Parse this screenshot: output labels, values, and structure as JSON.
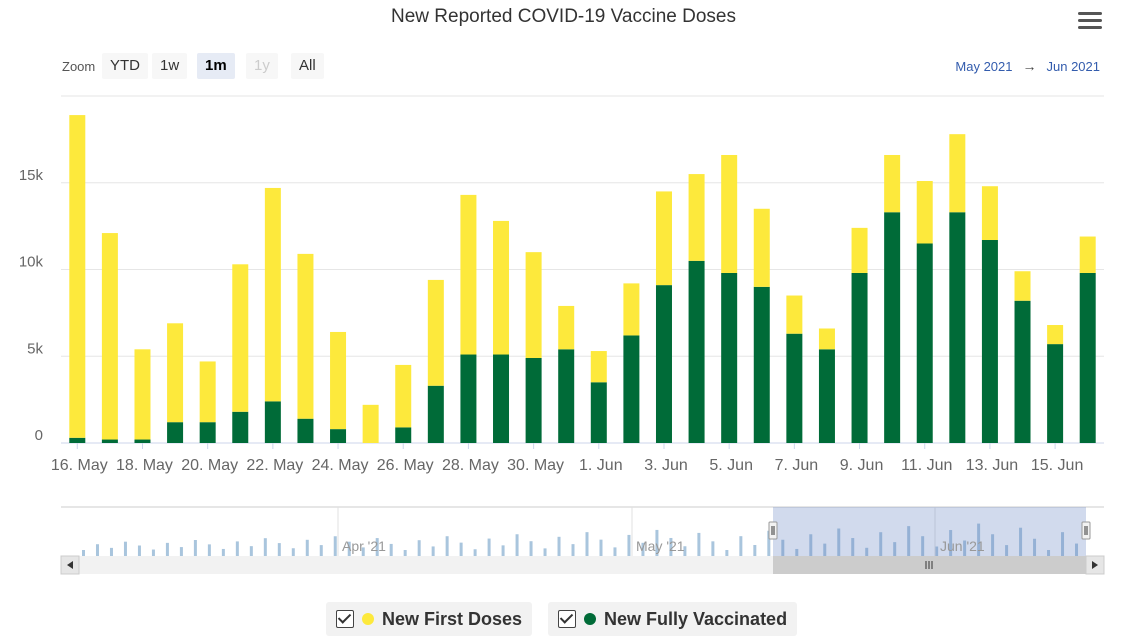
{
  "title": "New Reported COVID-19 Vaccine Doses",
  "icons": {
    "menu": "hamburger-menu-icon",
    "checkbox": "checkbox-checked-icon",
    "scroll_left": "chevron-left-icon",
    "scroll_right": "chevron-right-icon",
    "grip": "grip-icon"
  },
  "zoom": {
    "label": "Zoom",
    "buttons": [
      {
        "label": "YTD",
        "state": "normal"
      },
      {
        "label": "1w",
        "state": "normal"
      },
      {
        "label": "1m",
        "state": "active"
      },
      {
        "label": "1y",
        "state": "disabled"
      },
      {
        "label": "All",
        "state": "normal"
      }
    ]
  },
  "range": {
    "from": "May 2021",
    "arrow": "→",
    "to": "Jun 2021"
  },
  "navigator": {
    "labels": [
      "Apr '21",
      "May '21",
      "Jun '21"
    ]
  },
  "legend": [
    {
      "label": "New First Doses",
      "color": "#fde93c"
    },
    {
      "label": "New Fully Vaccinated",
      "color": "#006b38"
    }
  ],
  "chart_data": {
    "type": "bar",
    "stacked": true,
    "title": "New Reported COVID-19 Vaccine Doses",
    "categories": [
      "16. May",
      "17. May",
      "18. May",
      "19. May",
      "20. May",
      "21. May",
      "22. May",
      "23. May",
      "24. May",
      "25. May",
      "26. May",
      "27. May",
      "28. May",
      "29. May",
      "30. May",
      "31. May",
      "1. Jun",
      "2. Jun",
      "3. Jun",
      "4. Jun",
      "5. Jun",
      "6. Jun",
      "7. Jun",
      "8. Jun",
      "9. Jun",
      "10. Jun",
      "11. Jun",
      "12. Jun",
      "13. Jun",
      "14. Jun",
      "15. Jun",
      "16. Jun"
    ],
    "x_tick_labels": [
      "16. May",
      "18. May",
      "20. May",
      "22. May",
      "24. May",
      "26. May",
      "28. May",
      "30. May",
      "1. Jun",
      "3. Jun",
      "5. Jun",
      "7. Jun",
      "9. Jun",
      "11. Jun",
      "13. Jun",
      "15. Jun"
    ],
    "series": [
      {
        "name": "New Fully Vaccinated",
        "color": "#006b38",
        "values": [
          300,
          200,
          200,
          1200,
          1200,
          1800,
          2400,
          1400,
          800,
          0,
          900,
          3300,
          5100,
          5100,
          4900,
          5400,
          3500,
          6200,
          9100,
          10500,
          9800,
          9000,
          6300,
          5400,
          9800,
          13300,
          11500,
          13300,
          11700,
          8200,
          5700,
          9800
        ]
      },
      {
        "name": "New First Doses",
        "color": "#fde93c",
        "values": [
          18600,
          11900,
          5200,
          5700,
          3500,
          8500,
          12300,
          9500,
          5600,
          2200,
          3600,
          6100,
          9200,
          7700,
          6100,
          2500,
          1800,
          3000,
          5400,
          5000,
          6800,
          4500,
          2200,
          1200,
          2600,
          3300,
          3600,
          4500,
          3100,
          1700,
          1100,
          2100
        ]
      }
    ],
    "ylim": [
      0,
      20000
    ],
    "y_ticks": [
      0,
      5000,
      10000,
      15000
    ],
    "y_tick_labels": [
      "0",
      "5k",
      "10k",
      "15k"
    ],
    "grid": true,
    "legend_position": "bottom-center"
  }
}
